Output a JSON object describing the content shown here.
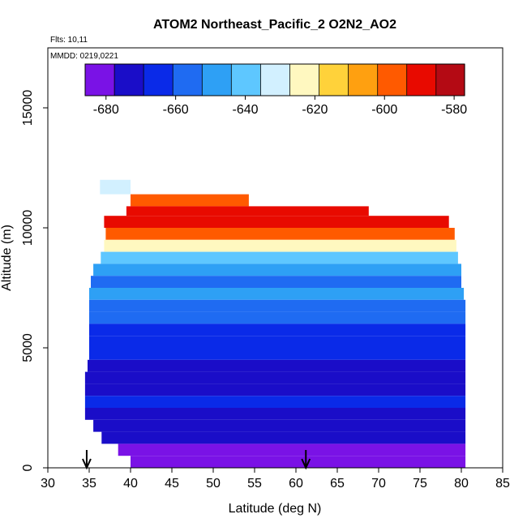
{
  "chart_data": {
    "type": "heatmap",
    "title": "ATOM2 Northeast_Pacific_2 O2N2_AO2",
    "flights_note": "Flts: 10,11",
    "date_note": "MMDD: 0219,0221",
    "xlabel": "Latitude (deg N)",
    "ylabel": "Altitude (m)",
    "xlim": [
      30,
      85
    ],
    "ylim": [
      0,
      17500
    ],
    "xticks": [
      "30",
      "35",
      "40",
      "45",
      "50",
      "55",
      "60",
      "65",
      "70",
      "75",
      "80",
      "85"
    ],
    "xtick_values": [
      30,
      35,
      40,
      45,
      50,
      55,
      60,
      65,
      70,
      75,
      80,
      85
    ],
    "yticks": [
      "0",
      "5000",
      "10000",
      "15000"
    ],
    "ytick_values": [
      0,
      5000,
      10000,
      15000
    ],
    "colorbar": {
      "range": [
        -686,
        -577
      ],
      "tick_labels": [
        "-680",
        "-660",
        "-640",
        "-620",
        "-600",
        "-580"
      ],
      "tick_values": [
        -680,
        -660,
        -640,
        -620,
        -600,
        -580
      ],
      "bin_edges": [
        -686,
        -677.6,
        -669.2,
        -660.8,
        -652.4,
        -644,
        -635.6,
        -627.2,
        -618.8,
        -610.4,
        -602,
        -593.6,
        -585.2,
        -577
      ],
      "colors": [
        "#7a12e6",
        "#1a0dc8",
        "#0a2ae8",
        "#1f6bf2",
        "#2ea0f5",
        "#5ec7ff",
        "#d2f0ff",
        "#fff8c0",
        "#ffd23a",
        "#ffa010",
        "#ff5a00",
        "#e80a00",
        "#b40a14"
      ]
    },
    "grid": false,
    "markers": [
      {
        "label": "arrow",
        "lat": 34.7
      },
      {
        "label": "arrow",
        "lat": 61.2
      }
    ],
    "layers": [
      {
        "alt": [
          11400,
          12000
        ],
        "lat": [
          36.3,
          40
        ],
        "value": -630
      },
      {
        "alt": [
          10900,
          11400
        ],
        "lat": [
          40,
          54.3
        ],
        "value": -595
      },
      {
        "alt": [
          10500,
          10900
        ],
        "lat": [
          39.5,
          68.8
        ],
        "value": -590
      },
      {
        "alt": [
          10000,
          10500
        ],
        "lat": [
          36.8,
          78.5
        ],
        "value": -588
      },
      {
        "alt": [
          9500,
          10000
        ],
        "lat": [
          37,
          79.2
        ],
        "value": -600
      },
      {
        "alt": [
          9000,
          9500
        ],
        "lat": [
          36.8,
          79.4
        ],
        "value": -620
      },
      {
        "alt": [
          8500,
          9000
        ],
        "lat": [
          36.4,
          79.6
        ],
        "value": -642
      },
      {
        "alt": [
          8000,
          8500
        ],
        "lat": [
          35.5,
          80
        ],
        "value": -648
      },
      {
        "alt": [
          7500,
          8000
        ],
        "lat": [
          35.2,
          80
        ],
        "value": -655
      },
      {
        "alt": [
          7000,
          7500
        ],
        "lat": [
          35,
          80.3
        ],
        "value": -652
      },
      {
        "alt": [
          6500,
          7000
        ],
        "lat": [
          35,
          80.5
        ],
        "value": -656
      },
      {
        "alt": [
          6000,
          6500
        ],
        "lat": [
          35,
          80.5
        ],
        "value": -660
      },
      {
        "alt": [
          5500,
          6000
        ],
        "lat": [
          35,
          80.5
        ],
        "value": -662
      },
      {
        "alt": [
          5000,
          5500
        ],
        "lat": [
          35,
          80.5
        ],
        "value": -664
      },
      {
        "alt": [
          4500,
          5000
        ],
        "lat": [
          35,
          80.5
        ],
        "value": -667
      },
      {
        "alt": [
          4000,
          4500
        ],
        "lat": [
          34.8,
          80.5
        ],
        "value": -670
      },
      {
        "alt": [
          3500,
          4000
        ],
        "lat": [
          34.5,
          80.5
        ],
        "value": -672
      },
      {
        "alt": [
          3000,
          3500
        ],
        "lat": [
          34.5,
          80.5
        ],
        "value": -670
      },
      {
        "alt": [
          2500,
          3000
        ],
        "lat": [
          34.5,
          80.5
        ],
        "value": -668
      },
      {
        "alt": [
          2000,
          2500
        ],
        "lat": [
          34.5,
          80.5
        ],
        "value": -671
      },
      {
        "alt": [
          1500,
          2000
        ],
        "lat": [
          35.5,
          80.5
        ],
        "value": -674
      },
      {
        "alt": [
          1000,
          1500
        ],
        "lat": [
          36.5,
          80.5
        ],
        "value": -677
      },
      {
        "alt": [
          500,
          1000
        ],
        "lat": [
          38.5,
          80.5
        ],
        "value": -679
      },
      {
        "alt": [
          0,
          500
        ],
        "lat": [
          40,
          80.5
        ],
        "value": -681
      }
    ]
  }
}
